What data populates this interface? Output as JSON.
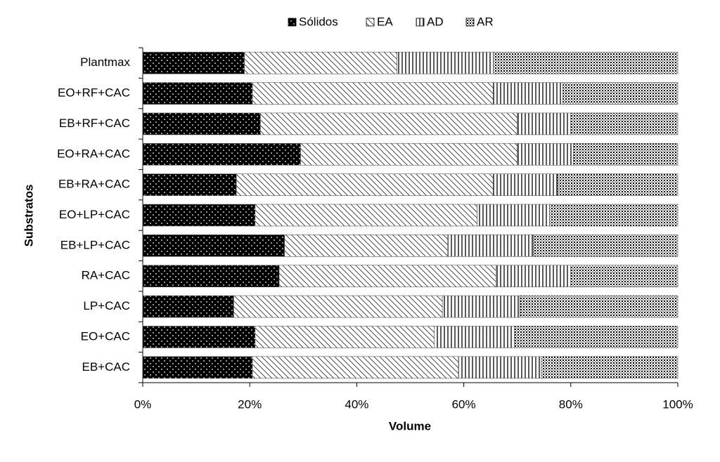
{
  "chart_data": {
    "type": "stacked-bar-horizontal",
    "categories": [
      "Plantmax",
      "EO+RF+CAC",
      "EB+RF+CAC",
      "EO+RA+CAC",
      "EB+RA+CAC",
      "EO+LP+CAC",
      "EB+LP+CAC",
      "RA+CAC",
      "LP+CAC",
      "EO+CAC",
      "EB+CAC"
    ],
    "series": [
      {
        "name": "Sólidos",
        "color": "#000000",
        "values": [
          19,
          20.5,
          22,
          29.5,
          17.5,
          21,
          26.5,
          25.5,
          17,
          21,
          20.5
        ]
      },
      {
        "name": "EA",
        "color": "#000000",
        "values": [
          28.5,
          45,
          48,
          40.5,
          48,
          41.5,
          30.5,
          40.5,
          39,
          33.5,
          38.5
        ]
      },
      {
        "name": "AD",
        "color": "#000000",
        "values": [
          18,
          13,
          10,
          10.5,
          12,
          13.5,
          16,
          14,
          14.5,
          15,
          15.5
        ]
      },
      {
        "name": "AR",
        "color": "#000000",
        "values": [
          34.5,
          21.5,
          20,
          19.5,
          22.5,
          24,
          27,
          20,
          29.5,
          30.5,
          25.5
        ]
      }
    ],
    "x_label": "Volume",
    "y_label": "Substratos",
    "xlim": [
      0,
      100
    ],
    "xticks": [
      {
        "value": 0,
        "label": "0%"
      },
      {
        "value": 20,
        "label": "20%"
      },
      {
        "value": 40,
        "label": "40%"
      },
      {
        "value": 60,
        "label": "60%"
      },
      {
        "value": 80,
        "label": "80%"
      },
      {
        "value": 100,
        "label": "100%"
      }
    ],
    "legend": "top"
  }
}
